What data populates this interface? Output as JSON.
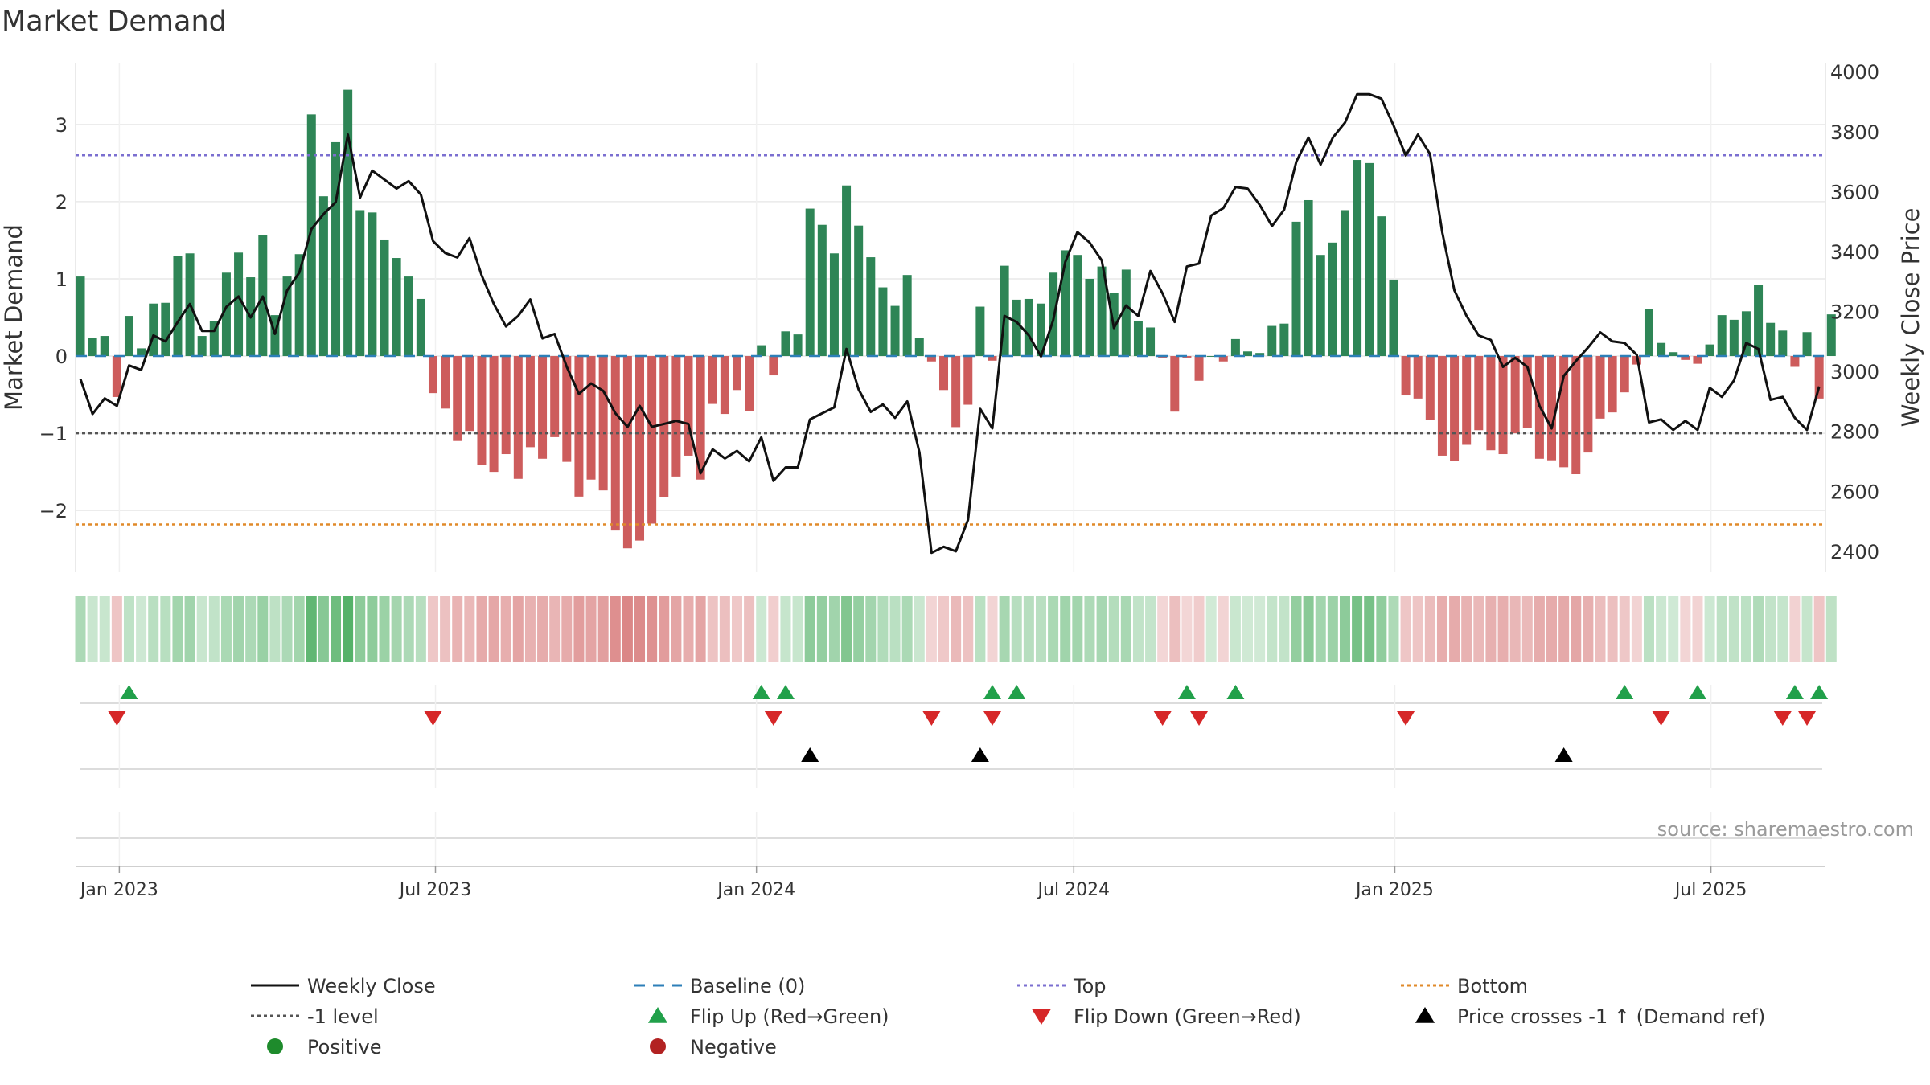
{
  "chart_data": {
    "type": "bar",
    "title": "Market Demand",
    "ylabel_left": "Market Demand",
    "ylabel_right": "Weekly Close Price",
    "ylim_left": [
      -2.8,
      3.8
    ],
    "ylim_right": [
      2330,
      4030
    ],
    "yticks_left": [
      3,
      2,
      1,
      0,
      -1,
      -2
    ],
    "ytick_labels_left": [
      "3",
      "2",
      "1",
      "0",
      "−1",
      "−2"
    ],
    "yticks_right": [
      4000,
      3800,
      3600,
      3400,
      3200,
      3000,
      2800,
      2600,
      2400
    ],
    "ytick_labels_right": [
      "4000",
      "3800",
      "3600",
      "3400",
      "3200",
      "3000",
      "2800",
      "2600",
      "2400"
    ],
    "x_ticks": [
      3.2,
      29.2,
      55.6,
      81.7,
      108.1,
      134.1
    ],
    "x_tick_labels": [
      "Jan 2023",
      "Jul 2023",
      "Jan 2024",
      "Jul 2024",
      "Jan 2025",
      "Jul 2025"
    ],
    "reference_lines": {
      "baseline": 0,
      "top": 2.6,
      "minus_one": -1,
      "bottom": -2.18
    },
    "series": [
      {
        "name": "Market Demand",
        "axis": "left",
        "kind": "bar",
        "values": [
          1.03,
          0.23,
          0.26,
          -0.53,
          0.52,
          0.1,
          0.68,
          0.69,
          1.3,
          1.33,
          0.26,
          0.45,
          1.08,
          1.34,
          1.02,
          1.57,
          0.53,
          1.03,
          1.32,
          3.13,
          2.07,
          2.77,
          3.45,
          1.89,
          1.86,
          1.51,
          1.27,
          1.03,
          0.74,
          -0.48,
          -0.68,
          -1.1,
          -0.97,
          -1.41,
          -1.5,
          -1.27,
          -1.59,
          -1.18,
          -1.33,
          -1.05,
          -1.37,
          -1.82,
          -1.6,
          -1.74,
          -2.26,
          -2.49,
          -2.39,
          -2.17,
          -1.83,
          -1.56,
          -1.29,
          -1.6,
          -0.62,
          -0.75,
          -0.44,
          -0.71,
          0.14,
          -0.25,
          0.32,
          0.28,
          1.91,
          1.7,
          1.33,
          2.21,
          1.69,
          1.28,
          0.89,
          0.65,
          1.05,
          0.23,
          -0.07,
          -0.44,
          -0.92,
          -0.63,
          0.64,
          -0.06,
          1.17,
          0.73,
          0.74,
          0.68,
          1.08,
          1.37,
          1.31,
          1.0,
          1.16,
          0.82,
          1.12,
          0.45,
          0.37,
          -0.02,
          -0.72,
          -0.02,
          -0.32,
          0.0,
          -0.07,
          0.22,
          0.06,
          0.04,
          0.39,
          0.42,
          1.74,
          2.02,
          1.31,
          1.47,
          1.89,
          2.54,
          2.5,
          1.81,
          0.99,
          -0.51,
          -0.55,
          -0.83,
          -1.29,
          -1.36,
          -1.15,
          -0.96,
          -1.22,
          -1.27,
          -1.0,
          -0.93,
          -1.33,
          -1.35,
          -1.44,
          -1.53,
          -1.25,
          -0.81,
          -0.73,
          -0.47,
          -0.11,
          0.61,
          0.17,
          0.05,
          -0.05,
          -0.1,
          0.15,
          0.53,
          0.47,
          0.58,
          0.92,
          0.43,
          0.33,
          -0.14,
          0.31,
          -0.55,
          0.54
        ]
      },
      {
        "name": "Weekly Close",
        "axis": "right",
        "kind": "line",
        "values": [
          2975,
          2858,
          2910,
          2885,
          3020,
          3005,
          3120,
          3100,
          3165,
          3225,
          3135,
          3135,
          3215,
          3250,
          3180,
          3250,
          3125,
          3270,
          3330,
          3475,
          3525,
          3565,
          3790,
          3580,
          3670,
          3640,
          3610,
          3635,
          3590,
          3435,
          3395,
          3380,
          3445,
          3320,
          3225,
          3150,
          3185,
          3240,
          3110,
          3125,
          3015,
          2925,
          2960,
          2935,
          2860,
          2815,
          2885,
          2815,
          2825,
          2835,
          2825,
          2660,
          2740,
          2710,
          2735,
          2700,
          2780,
          2635,
          2680,
          2680,
          2840,
          2860,
          2880,
          3075,
          2940,
          2865,
          2890,
          2845,
          2900,
          2730,
          2395,
          2415,
          2400,
          2505,
          2875,
          2810,
          3185,
          3165,
          3120,
          3050,
          3170,
          3365,
          3465,
          3430,
          3370,
          3145,
          3220,
          3185,
          3335,
          3260,
          3165,
          3350,
          3360,
          3520,
          3545,
          3615,
          3610,
          3555,
          3485,
          3540,
          3700,
          3780,
          3690,
          3780,
          3830,
          3925,
          3925,
          3910,
          3820,
          3720,
          3790,
          3725,
          3465,
          3270,
          3185,
          3120,
          3105,
          3015,
          3045,
          3015,
          2885,
          2810,
          2985,
          3035,
          3080,
          3130,
          3100,
          3095,
          3055,
          2830,
          2840,
          2805,
          2835,
          2805,
          2945,
          2915,
          2970,
          3095,
          3075,
          2905,
          2915,
          2845,
          2805,
          2950
        ]
      }
    ],
    "heat_strip": {
      "name": "Demand heat strip",
      "source_series": "Market Demand"
    },
    "flip_up_weeks": [
      4,
      56,
      58,
      75,
      77,
      91,
      95,
      127,
      133,
      141,
      143
    ],
    "flip_down_weeks": [
      3,
      29,
      57,
      70,
      75,
      89,
      92,
      109,
      130,
      140,
      142
    ],
    "price_cross_weeks": [
      60,
      74,
      122
    ],
    "annotation": "source: sharemaestro.com",
    "legend": {
      "placement": "bottom",
      "entries": [
        {
          "label": "Weekly Close",
          "symbol": "line",
          "color": "#111111"
        },
        {
          "label": "Baseline (0)",
          "symbol": "dash",
          "color": "#2d7fb8"
        },
        {
          "label": "Top",
          "symbol": "dot",
          "color": "#7b6fd0"
        },
        {
          "label": "Bottom",
          "symbol": "dot",
          "color": "#e08a2a"
        },
        {
          "label": "-1 level",
          "symbol": "dot",
          "color": "#555555"
        },
        {
          "label": "Flip Up (Red→Green)",
          "symbol": "triangle-up",
          "color": "#21a04a"
        },
        {
          "label": "Flip Down (Green→Red)",
          "symbol": "triangle-down",
          "color": "#d62728"
        },
        {
          "label": "Price crosses -1 ↑ (Demand ref)",
          "symbol": "triangle-up",
          "color": "#000000"
        },
        {
          "label": "Positive",
          "symbol": "circle",
          "color": "#1e8b2c"
        },
        {
          "label": "Negative",
          "symbol": "circle",
          "color": "#b22222"
        }
      ]
    },
    "colors": {
      "positive_bar": "#2e8556",
      "negative_bar": "#cd5c5c",
      "line": "#111111",
      "grid": "#e9e9e9",
      "text": "#333333"
    }
  }
}
